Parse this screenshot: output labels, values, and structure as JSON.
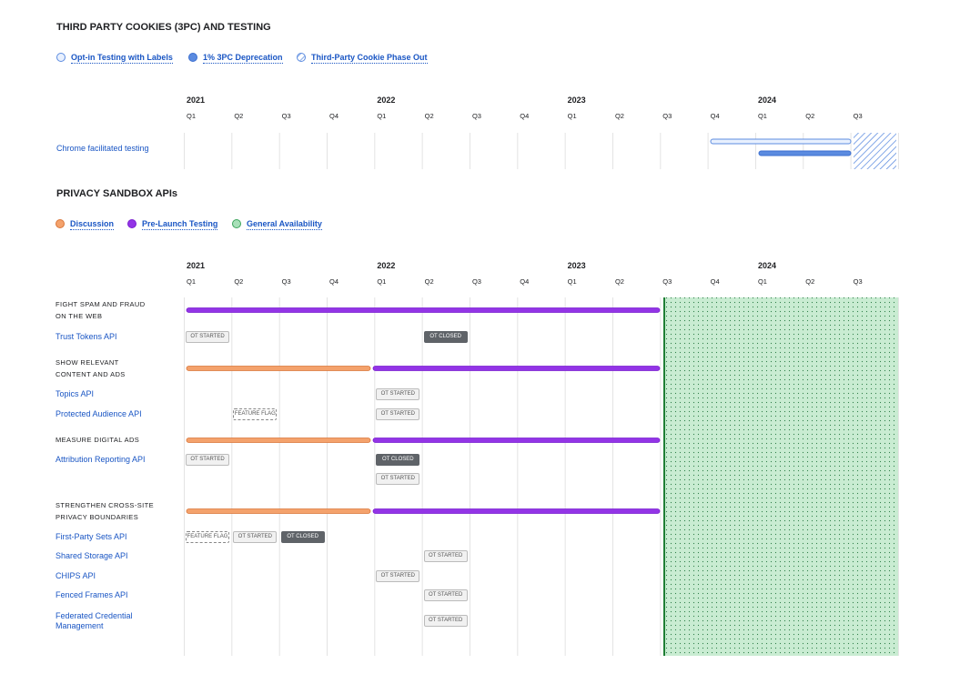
{
  "sections": [
    {
      "title": "THIRD PARTY COOKIES (3PC) AND TESTING",
      "legend": [
        "Opt-in Testing with Labels",
        "1% 3PC Deprecation",
        "Third-Party Cookie Phase Out"
      ],
      "years": [
        "2021",
        "2022",
        "2023",
        "2024"
      ],
      "quarters": [
        "Q1",
        "Q2",
        "Q3",
        "Q4",
        "Q1",
        "Q2",
        "Q3",
        "Q4",
        "Q1",
        "Q2",
        "Q3",
        "Q4",
        "Q1",
        "Q2",
        "Q3"
      ],
      "rows": [
        {
          "lines": [
            "Chrome facilitated testing"
          ]
        }
      ]
    },
    {
      "title": "PRIVACY SANDBOX APIs",
      "legend": [
        "Discussion",
        "Pre-Launch Testing",
        "General Availability"
      ],
      "years": [
        "2021",
        "2022",
        "2023",
        "2024"
      ],
      "quarters": [
        "Q1",
        "Q2",
        "Q3",
        "Q4",
        "Q1",
        "Q2",
        "Q3",
        "Q4",
        "Q1",
        "Q2",
        "Q3",
        "Q4",
        "Q1",
        "Q2",
        "Q3"
      ],
      "groups": [
        {
          "title": [
            "FIGHT SPAM AND FRAUD",
            "ON THE WEB"
          ],
          "apis": [
            {
              "lines": [
                "Trust Tokens API"
              ],
              "badges": [
                "OT STARTED",
                "OT CLOSED"
              ]
            }
          ]
        },
        {
          "title": [
            "SHOW RELEVANT",
            "CONTENT AND ADS"
          ],
          "apis": [
            {
              "lines": [
                "Topics API"
              ],
              "badges": [
                "OT STARTED"
              ]
            },
            {
              "lines": [
                "Protected Audience API"
              ],
              "badges": [
                "FEATURE FLAG",
                "OT STARTED"
              ]
            }
          ]
        },
        {
          "title": [
            "MEASURE DIGITAL ADS"
          ],
          "apis": [
            {
              "lines": [
                "Attribution Reporting API"
              ],
              "badges": [
                "OT STARTED",
                "OT CLOSED",
                "OT STARTED"
              ]
            }
          ]
        },
        {
          "title": [
            "STRENGTHEN CROSS-SITE",
            "PRIVACY BOUNDARIES"
          ],
          "apis": [
            {
              "lines": [
                "First-Party Sets API"
              ],
              "badges": [
                "FEATURE FLAG",
                "OT STARTED",
                "OT CLOSED"
              ]
            },
            {
              "lines": [
                "Shared Storage API"
              ],
              "badges": [
                "OT STARTED"
              ]
            },
            {
              "lines": [
                "CHIPS API"
              ],
              "badges": [
                "OT STARTED"
              ]
            },
            {
              "lines": [
                "Fenced Frames API"
              ],
              "badges": [
                "OT STARTED"
              ]
            },
            {
              "lines": [
                "Federated Credential",
                "Management"
              ],
              "badges": [
                "OT STARTED"
              ]
            }
          ]
        }
      ]
    }
  ]
}
